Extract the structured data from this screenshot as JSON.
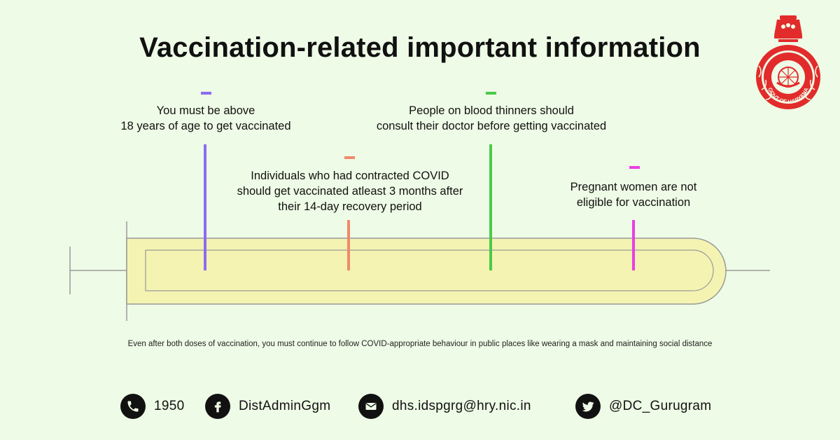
{
  "title": "Vaccination-related important information",
  "emblem": {
    "name": "haryana-emblem",
    "text": "GOVT OF HARYANA"
  },
  "points": [
    {
      "line1": "You must be above",
      "line2": "18 years of age to get vaccinated",
      "line3": "",
      "color": "#8b6cf0"
    },
    {
      "line1": "Individuals who had contracted COVID",
      "line2": "should get vaccinated atleast 3 months after",
      "line3": "their 14-day recovery period",
      "color": "#f08a6a"
    },
    {
      "line1": "People on blood thinners should",
      "line2": "consult their doctor before getting vaccinated",
      "line3": "",
      "color": "#4cc94a"
    },
    {
      "line1": "Pregnant women are not",
      "line2": "eligible for vaccination",
      "line3": "",
      "color": "#ea3fe3"
    }
  ],
  "note": "Even after both doses of vaccination, you must continue to follow COVID-appropriate behaviour in public places like wearing a mask and maintaining social distance",
  "contacts": [
    {
      "icon": "phone-icon",
      "text": "1950"
    },
    {
      "icon": "facebook-icon",
      "text": "DistAdminGgm"
    },
    {
      "icon": "email-icon",
      "text": "dhs.idspgrg@hry.nic.in"
    },
    {
      "icon": "twitter-icon",
      "text": "@DC_Gurugram"
    }
  ],
  "colors": {
    "background": "#eefbe6",
    "syringe_fill": "#f4f3b2",
    "emblem_red": "#e22b2b"
  }
}
